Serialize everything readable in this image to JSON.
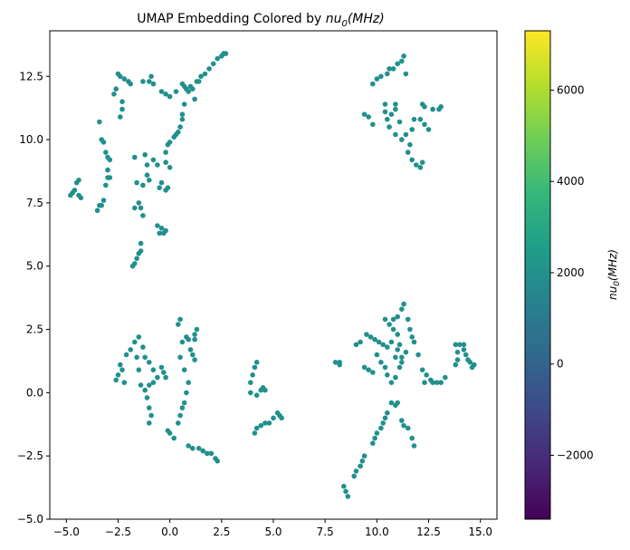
{
  "chart_data": {
    "type": "scatter",
    "title": "UMAP Embedding Colored by nu₀(MHz)",
    "title_main": "UMAP Embedding Colored by ",
    "title_var": "nu",
    "title_sub": "0",
    "title_unit": "(MHz)",
    "xlabel": "",
    "ylabel": "",
    "xlim": [
      -5.8,
      15.8
    ],
    "ylim": [
      -5,
      14.3
    ],
    "xticks": [
      -5.0,
      -2.5,
      0.0,
      2.5,
      5.0,
      7.5,
      10.0,
      12.5,
      15.0
    ],
    "xtick_labels": [
      "−5.0",
      "−2.5",
      "0.0",
      "2.5",
      "5.0",
      "7.5",
      "10.0",
      "12.5",
      "15.0"
    ],
    "yticks": [
      -5.0,
      -2.5,
      0.0,
      2.5,
      5.0,
      7.5,
      10.0,
      12.5
    ],
    "ytick_labels": [
      "−5.0",
      "−2.5",
      "0.0",
      "2.5",
      "5.0",
      "7.5",
      "10.0",
      "12.5"
    ],
    "grid": false,
    "colorbar": {
      "label": "nu₀(MHz)",
      "label_var": "nu",
      "label_sub": "0",
      "label_unit": "(MHz)",
      "colormap": "viridis",
      "range": [
        -3400,
        7300
      ],
      "ticks": [
        -2000,
        0,
        2000,
        4000,
        6000
      ],
      "tick_labels": [
        "−2000",
        "0",
        "2000",
        "4000",
        "6000"
      ],
      "colors": [
        "#440154",
        "#482878",
        "#3e4989",
        "#31688e",
        "#26828e",
        "#1f9e89",
        "#35b779",
        "#6ece58",
        "#b5de2b",
        "#fde725"
      ]
    },
    "point_color": "#21908d",
    "points": [
      [
        -4.8,
        7.8
      ],
      [
        -4.7,
        7.9
      ],
      [
        -4.6,
        8.0
      ],
      [
        -4.5,
        8.3
      ],
      [
        -4.4,
        8.4
      ],
      [
        -4.4,
        7.8
      ],
      [
        -4.3,
        7.7
      ],
      [
        -3.5,
        7.2
      ],
      [
        -3.4,
        7.4
      ],
      [
        -3.3,
        7.4
      ],
      [
        -3.2,
        7.6
      ],
      [
        -3.1,
        8.2
      ],
      [
        -3.0,
        8.5
      ],
      [
        -3.0,
        8.8
      ],
      [
        -2.9,
        8.5
      ],
      [
        -3.4,
        10.7
      ],
      [
        -3.3,
        10.0
      ],
      [
        -3.2,
        9.9
      ],
      [
        -3.1,
        9.5
      ],
      [
        -3.0,
        9.3
      ],
      [
        -2.9,
        9.2
      ],
      [
        -2.7,
        11.8
      ],
      [
        -2.6,
        12.0
      ],
      [
        -2.5,
        12.6
      ],
      [
        -2.4,
        12.5
      ],
      [
        -2.2,
        12.4
      ],
      [
        -2.0,
        12.3
      ],
      [
        -1.9,
        12.2
      ],
      [
        -2.3,
        11.5
      ],
      [
        -2.3,
        11.2
      ],
      [
        -2.4,
        10.9
      ],
      [
        -1.3,
        12.3
      ],
      [
        -1.0,
        12.3
      ],
      [
        -0.9,
        12.5
      ],
      [
        -0.8,
        12.2
      ],
      [
        -0.4,
        11.9
      ],
      [
        -0.2,
        11.8
      ],
      [
        0.0,
        11.7
      ],
      [
        0.3,
        11.9
      ],
      [
        0.6,
        12.2
      ],
      [
        0.7,
        12.1
      ],
      [
        0.8,
        12.0
      ],
      [
        0.9,
        11.9
      ],
      [
        1.0,
        12.1
      ],
      [
        1.1,
        12.0
      ],
      [
        1.2,
        11.6
      ],
      [
        1.3,
        12.3
      ],
      [
        1.4,
        12.3
      ],
      [
        0.7,
        11.4
      ],
      [
        0.6,
        11.0
      ],
      [
        0.6,
        10.8
      ],
      [
        0.5,
        10.5
      ],
      [
        0.4,
        10.3
      ],
      [
        0.3,
        10.2
      ],
      [
        0.2,
        10.1
      ],
      [
        0.0,
        9.9
      ],
      [
        -0.1,
        9.8
      ],
      [
        -0.2,
        9.5
      ],
      [
        1.5,
        12.5
      ],
      [
        1.7,
        12.6
      ],
      [
        1.9,
        12.8
      ],
      [
        2.1,
        13.0
      ],
      [
        2.3,
        13.2
      ],
      [
        2.5,
        13.3
      ],
      [
        2.6,
        13.4
      ],
      [
        2.7,
        13.4
      ],
      [
        -1.7,
        9.3
      ],
      [
        -1.2,
        9.4
      ],
      [
        -1.1,
        9.0
      ],
      [
        -0.8,
        9.2
      ],
      [
        -0.6,
        9.0
      ],
      [
        -0.2,
        9.1
      ],
      [
        0.0,
        8.9
      ],
      [
        -1.1,
        8.6
      ],
      [
        -1.0,
        8.4
      ],
      [
        -1.3,
        8.2
      ],
      [
        -1.6,
        8.3
      ],
      [
        -0.5,
        8.1
      ],
      [
        -0.4,
        8.3
      ],
      [
        -1.7,
        7.3
      ],
      [
        -1.5,
        7.5
      ],
      [
        -1.4,
        7.3
      ],
      [
        -1.3,
        7.0
      ],
      [
        -0.1,
        8.1
      ],
      [
        -0.2,
        8.0
      ],
      [
        -0.6,
        6.6
      ],
      [
        -0.4,
        6.5
      ],
      [
        -0.5,
        6.3
      ],
      [
        -0.3,
        6.3
      ],
      [
        -0.2,
        6.4
      ],
      [
        -1.4,
        5.9
      ],
      [
        -1.4,
        5.6
      ],
      [
        -1.5,
        5.5
      ],
      [
        -1.6,
        5.3
      ],
      [
        -1.7,
        5.1
      ],
      [
        -1.8,
        5.0
      ],
      [
        9.8,
        12.2
      ],
      [
        10.0,
        12.4
      ],
      [
        10.2,
        12.5
      ],
      [
        10.5,
        12.6
      ],
      [
        10.6,
        12.8
      ],
      [
        10.8,
        12.8
      ],
      [
        11.0,
        13.0
      ],
      [
        11.2,
        13.1
      ],
      [
        11.3,
        13.3
      ],
      [
        11.4,
        12.6
      ],
      [
        9.4,
        11.0
      ],
      [
        9.6,
        10.9
      ],
      [
        10.4,
        11.1
      ],
      [
        10.5,
        10.8
      ],
      [
        10.7,
        11.0
      ],
      [
        10.9,
        11.2
      ],
      [
        11.1,
        10.7
      ],
      [
        10.6,
        10.5
      ],
      [
        10.9,
        10.2
      ],
      [
        11.2,
        10.0
      ],
      [
        11.4,
        10.2
      ],
      [
        11.6,
        9.8
      ],
      [
        11.5,
        9.5
      ],
      [
        11.7,
        9.2
      ],
      [
        11.9,
        9.0
      ],
      [
        12.1,
        8.9
      ],
      [
        12.2,
        9.1
      ],
      [
        11.8,
        10.8
      ],
      [
        12.1,
        10.8
      ],
      [
        12.3,
        10.6
      ],
      [
        12.5,
        10.4
      ],
      [
        12.2,
        11.4
      ],
      [
        12.3,
        11.3
      ],
      [
        13.1,
        11.3
      ],
      [
        13.0,
        11.2
      ],
      [
        12.7,
        11.2
      ],
      [
        11.7,
        10.4
      ],
      [
        10.4,
        11.4
      ],
      [
        10.9,
        11.4
      ],
      [
        9.8,
        10.6
      ],
      [
        -2.6,
        0.5
      ],
      [
        -2.5,
        0.7
      ],
      [
        -2.3,
        0.9
      ],
      [
        -2.4,
        1.1
      ],
      [
        -2.1,
        1.5
      ],
      [
        -1.9,
        1.7
      ],
      [
        -1.7,
        2.0
      ],
      [
        -1.5,
        2.2
      ],
      [
        -1.3,
        1.8
      ],
      [
        -1.2,
        1.4
      ],
      [
        -1.0,
        1.2
      ],
      [
        -0.8,
        0.9
      ],
      [
        -0.6,
        0.6
      ],
      [
        -0.8,
        0.4
      ],
      [
        -1.0,
        0.3
      ],
      [
        -1.4,
        0.3
      ],
      [
        -1.2,
        0.1
      ],
      [
        -1.1,
        -0.2
      ],
      [
        -1.0,
        -0.6
      ],
      [
        -0.9,
        -0.9
      ],
      [
        -1.0,
        -1.2
      ],
      [
        -0.4,
        1.0
      ],
      [
        -0.3,
        0.8
      ],
      [
        -0.2,
        0.6
      ],
      [
        -1.5,
        0.9
      ],
      [
        -1.6,
        1.4
      ],
      [
        -2.2,
        0.4
      ],
      [
        -0.1,
        -1.5
      ],
      [
        0.0,
        -1.6
      ],
      [
        0.2,
        -1.8
      ],
      [
        0.4,
        -1.2
      ],
      [
        0.5,
        -0.9
      ],
      [
        0.6,
        -0.6
      ],
      [
        0.7,
        -0.4
      ],
      [
        0.8,
        0.0
      ],
      [
        0.9,
        0.4
      ],
      [
        0.7,
        0.9
      ],
      [
        0.5,
        1.4
      ],
      [
        0.6,
        2.0
      ],
      [
        0.8,
        2.2
      ],
      [
        0.9,
        2.1
      ],
      [
        0.4,
        2.7
      ],
      [
        0.5,
        2.9
      ],
      [
        1.1,
        1.5
      ],
      [
        1.2,
        1.3
      ],
      [
        1.0,
        1.7
      ],
      [
        1.2,
        2.1
      ],
      [
        1.3,
        2.5
      ],
      [
        1.2,
        2.3
      ],
      [
        0.9,
        -2.1
      ],
      [
        1.1,
        -2.2
      ],
      [
        1.4,
        -2.2
      ],
      [
        1.6,
        -2.3
      ],
      [
        1.8,
        -2.4
      ],
      [
        2.0,
        -2.4
      ],
      [
        2.2,
        -2.6
      ],
      [
        2.3,
        -2.7
      ],
      [
        4.2,
        1.2
      ],
      [
        4.1,
        1.0
      ],
      [
        4.0,
        0.7
      ],
      [
        3.9,
        0.4
      ],
      [
        3.9,
        0.0
      ],
      [
        4.2,
        -0.1
      ],
      [
        4.4,
        0.1
      ],
      [
        4.5,
        0.2
      ],
      [
        4.6,
        0.1
      ],
      [
        4.1,
        -1.6
      ],
      [
        4.2,
        -1.4
      ],
      [
        4.4,
        -1.3
      ],
      [
        4.6,
        -1.2
      ],
      [
        4.8,
        -1.2
      ],
      [
        5.0,
        -1.0
      ],
      [
        5.2,
        -0.8
      ],
      [
        5.3,
        -0.9
      ],
      [
        5.4,
        -1.0
      ],
      [
        8.0,
        1.2
      ],
      [
        8.2,
        1.1
      ],
      [
        8.2,
        1.2
      ],
      [
        9.0,
        1.9
      ],
      [
        9.2,
        2.0
      ],
      [
        9.5,
        2.3
      ],
      [
        9.7,
        2.2
      ],
      [
        9.9,
        2.1
      ],
      [
        10.1,
        2.0
      ],
      [
        10.3,
        1.9
      ],
      [
        10.5,
        1.8
      ],
      [
        10.7,
        2.0
      ],
      [
        10.8,
        2.9
      ],
      [
        11.0,
        3.0
      ],
      [
        11.2,
        3.3
      ],
      [
        11.3,
        3.5
      ],
      [
        11.5,
        2.9
      ],
      [
        11.6,
        2.5
      ],
      [
        11.7,
        2.2
      ],
      [
        11.8,
        2.0
      ],
      [
        11.4,
        1.6
      ],
      [
        11.2,
        1.4
      ],
      [
        11.0,
        1.7
      ],
      [
        11.1,
        1.9
      ],
      [
        12.0,
        1.5
      ],
      [
        12.2,
        0.9
      ],
      [
        12.4,
        0.7
      ],
      [
        12.6,
        0.5
      ],
      [
        12.9,
        0.4
      ],
      [
        13.1,
        0.4
      ],
      [
        13.3,
        0.6
      ],
      [
        12.3,
        0.4
      ],
      [
        12.7,
        0.4
      ],
      [
        9.4,
        1.0
      ],
      [
        9.6,
        0.9
      ],
      [
        9.8,
        0.8
      ],
      [
        10.0,
        1.5
      ],
      [
        10.2,
        1.2
      ],
      [
        10.4,
        1.0
      ],
      [
        10.5,
        0.7
      ],
      [
        10.7,
        0.4
      ],
      [
        10.9,
        0.6
      ],
      [
        11.1,
        1.0
      ],
      [
        11.2,
        1.2
      ],
      [
        10.4,
        2.9
      ],
      [
        10.6,
        2.7
      ],
      [
        10.8,
        2.5
      ],
      [
        11.0,
        2.3
      ],
      [
        10.9,
        1.4
      ],
      [
        10.7,
        -0.4
      ],
      [
        10.9,
        -0.5
      ],
      [
        11.0,
        -0.4
      ],
      [
        10.5,
        -0.8
      ],
      [
        10.4,
        -1.0
      ],
      [
        10.3,
        -1.2
      ],
      [
        10.2,
        -1.4
      ],
      [
        10.0,
        -1.6
      ],
      [
        9.9,
        -1.8
      ],
      [
        9.8,
        -2.0
      ],
      [
        11.2,
        -1.1
      ],
      [
        11.3,
        -1.3
      ],
      [
        11.5,
        -1.4
      ],
      [
        11.7,
        -1.8
      ],
      [
        11.8,
        -2.1
      ],
      [
        9.4,
        -2.5
      ],
      [
        9.3,
        -2.7
      ],
      [
        9.2,
        -2.9
      ],
      [
        9.0,
        -3.1
      ],
      [
        8.9,
        -3.3
      ],
      [
        8.4,
        -3.7
      ],
      [
        8.5,
        -3.9
      ],
      [
        8.6,
        -4.1
      ],
      [
        13.8,
        1.9
      ],
      [
        14.0,
        1.9
      ],
      [
        14.2,
        1.7
      ],
      [
        14.3,
        1.5
      ],
      [
        14.4,
        1.3
      ],
      [
        14.5,
        1.2
      ],
      [
        14.6,
        1.0
      ],
      [
        14.7,
        1.1
      ],
      [
        13.9,
        1.3
      ],
      [
        13.8,
        1.1
      ],
      [
        14.2,
        1.9
      ],
      [
        13.9,
        1.6
      ]
    ]
  }
}
